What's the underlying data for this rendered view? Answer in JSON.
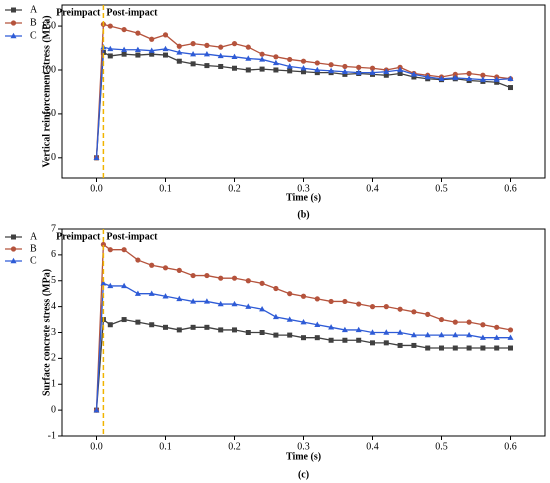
{
  "chart_data": [
    {
      "type": "line",
      "caption": "(b)",
      "x_label": "Time (s)",
      "y_label": "Vertical reinforcement stress (MPa)",
      "annotations": [
        "Preimpact",
        "Post-impact"
      ],
      "reference_line": {
        "x": 0.01,
        "color": "#f0b400"
      },
      "x": [
        0,
        0.01,
        0.02,
        0.04,
        0.06,
        0.08,
        0.1,
        0.12,
        0.14,
        0.16,
        0.18,
        0.2,
        0.22,
        0.24,
        0.26,
        0.28,
        0.3,
        0.32,
        0.34,
        0.36,
        0.38,
        0.4,
        0.42,
        0.44,
        0.46,
        0.48,
        0.5,
        0.52,
        0.54,
        0.56,
        0.58,
        0.6
      ],
      "series": [
        {
          "name": "A",
          "color": "#404040",
          "marker": "square",
          "values": [
            0,
            120,
            116,
            118,
            117,
            118,
            117,
            110,
            107,
            105,
            104,
            102,
            100,
            101,
            100,
            99,
            98,
            97,
            97,
            95,
            96,
            95,
            94,
            96,
            92,
            90,
            89,
            90,
            88,
            87,
            86,
            80
          ]
        },
        {
          "name": "B",
          "color": "#b5533c",
          "marker": "circle",
          "values": [
            0,
            152,
            150,
            146,
            142,
            135,
            140,
            127,
            130,
            128,
            126,
            130,
            126,
            118,
            115,
            112,
            110,
            108,
            106,
            104,
            103,
            102,
            100,
            103,
            96,
            94,
            92,
            95,
            96,
            94,
            92,
            90
          ]
        },
        {
          "name": "C",
          "color": "#2e5bd6",
          "marker": "triangle",
          "values": [
            0,
            126,
            124,
            123,
            123,
            122,
            124,
            120,
            118,
            118,
            116,
            115,
            113,
            112,
            108,
            104,
            102,
            100,
            99,
            98,
            97,
            97,
            98,
            100,
            95,
            92,
            90,
            91,
            90,
            89,
            89,
            90
          ]
        }
      ],
      "xlim": [
        -0.05,
        0.65
      ],
      "xticks": [
        {
          "value": 0,
          "label": "0.0"
        },
        0.1,
        0.2,
        0.3,
        0.4,
        0.5,
        0.6
      ],
      "ylim": [
        -23,
        174
      ],
      "yticks": [
        0,
        50,
        100,
        150
      ],
      "legend": "outside-left"
    },
    {
      "type": "line",
      "caption": "(c)",
      "x_label": "Time (s)",
      "y_label": "Surface concrete stress (MPa)",
      "annotations": [
        "Preimpact",
        "Post-impact"
      ],
      "reference_line": {
        "x": 0.01,
        "color": "#f0b400"
      },
      "x": [
        0,
        0.01,
        0.02,
        0.04,
        0.06,
        0.08,
        0.1,
        0.12,
        0.14,
        0.16,
        0.18,
        0.2,
        0.22,
        0.24,
        0.26,
        0.28,
        0.3,
        0.32,
        0.34,
        0.36,
        0.38,
        0.4,
        0.42,
        0.44,
        0.46,
        0.48,
        0.5,
        0.52,
        0.54,
        0.56,
        0.58,
        0.6
      ],
      "series": [
        {
          "name": "A",
          "color": "#404040",
          "marker": "square",
          "values": [
            0,
            3.5,
            3.3,
            3.5,
            3.4,
            3.3,
            3.2,
            3.1,
            3.2,
            3.2,
            3.1,
            3.1,
            3.0,
            3.0,
            2.9,
            2.9,
            2.8,
            2.8,
            2.7,
            2.7,
            2.7,
            2.6,
            2.6,
            2.5,
            2.5,
            2.4,
            2.4,
            2.4,
            2.4,
            2.4,
            2.4,
            2.4
          ]
        },
        {
          "name": "B",
          "color": "#b5533c",
          "marker": "circle",
          "values": [
            0,
            6.4,
            6.2,
            6.2,
            5.8,
            5.6,
            5.5,
            5.4,
            5.2,
            5.2,
            5.1,
            5.1,
            5.0,
            4.9,
            4.7,
            4.5,
            4.4,
            4.3,
            4.2,
            4.2,
            4.1,
            4.0,
            4.0,
            3.9,
            3.8,
            3.7,
            3.5,
            3.4,
            3.4,
            3.3,
            3.2,
            3.1
          ]
        },
        {
          "name": "C",
          "color": "#2e5bd6",
          "marker": "triangle",
          "values": [
            0,
            4.9,
            4.8,
            4.8,
            4.5,
            4.5,
            4.4,
            4.3,
            4.2,
            4.2,
            4.1,
            4.1,
            4.0,
            3.9,
            3.6,
            3.5,
            3.4,
            3.3,
            3.2,
            3.1,
            3.1,
            3.0,
            3.0,
            3.0,
            2.9,
            2.9,
            2.9,
            2.9,
            2.9,
            2.8,
            2.8,
            2.8
          ]
        }
      ],
      "xlim": [
        -0.05,
        0.65
      ],
      "xticks": [
        {
          "value": 0,
          "label": "0.0"
        },
        0.1,
        0.2,
        0.3,
        0.4,
        0.5,
        0.6
      ],
      "ylim": [
        -1,
        7
      ],
      "yticks": [
        -1,
        0,
        1,
        2,
        3,
        4,
        5,
        6,
        7
      ],
      "legend": "outside-left"
    }
  ]
}
